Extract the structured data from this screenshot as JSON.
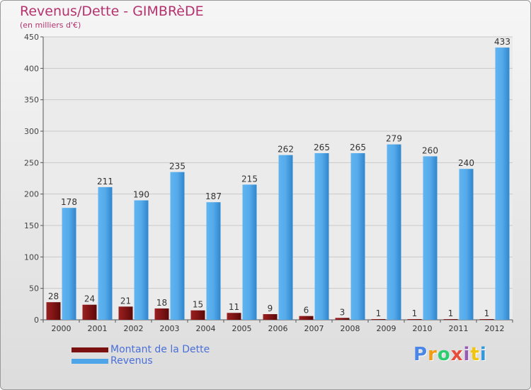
{
  "header": {
    "title": "Revenus/Dette - GIMBRèDE",
    "subtitle": "(en milliers d'€)"
  },
  "chart_data": {
    "type": "bar",
    "categories": [
      "2000",
      "2001",
      "2002",
      "2003",
      "2004",
      "2005",
      "2006",
      "2007",
      "2008",
      "2009",
      "2010",
      "2011",
      "2012"
    ],
    "series": [
      {
        "name": "Montant de la Dette",
        "color": "#7a1010",
        "values": [
          28,
          24,
          21,
          18,
          15,
          11,
          9,
          6,
          3,
          1,
          1,
          1,
          1
        ]
      },
      {
        "name": "Revenus",
        "color": "#4ea6e8",
        "values": [
          178,
          211,
          190,
          235,
          187,
          215,
          262,
          265,
          265,
          279,
          260,
          240,
          433
        ]
      }
    ],
    "ylim": [
      0,
      450
    ],
    "yticks": [
      0,
      50,
      100,
      150,
      200,
      250,
      300,
      350,
      400,
      450
    ],
    "grid": true,
    "legend": "bottom-left"
  },
  "logo": {
    "text": "Proxiti",
    "colors": [
      "#4a86e8",
      "#f39c12",
      "#2ecc71",
      "#e74c3c",
      "#9b59b6",
      "#f1c40f",
      "#3498db"
    ]
  }
}
